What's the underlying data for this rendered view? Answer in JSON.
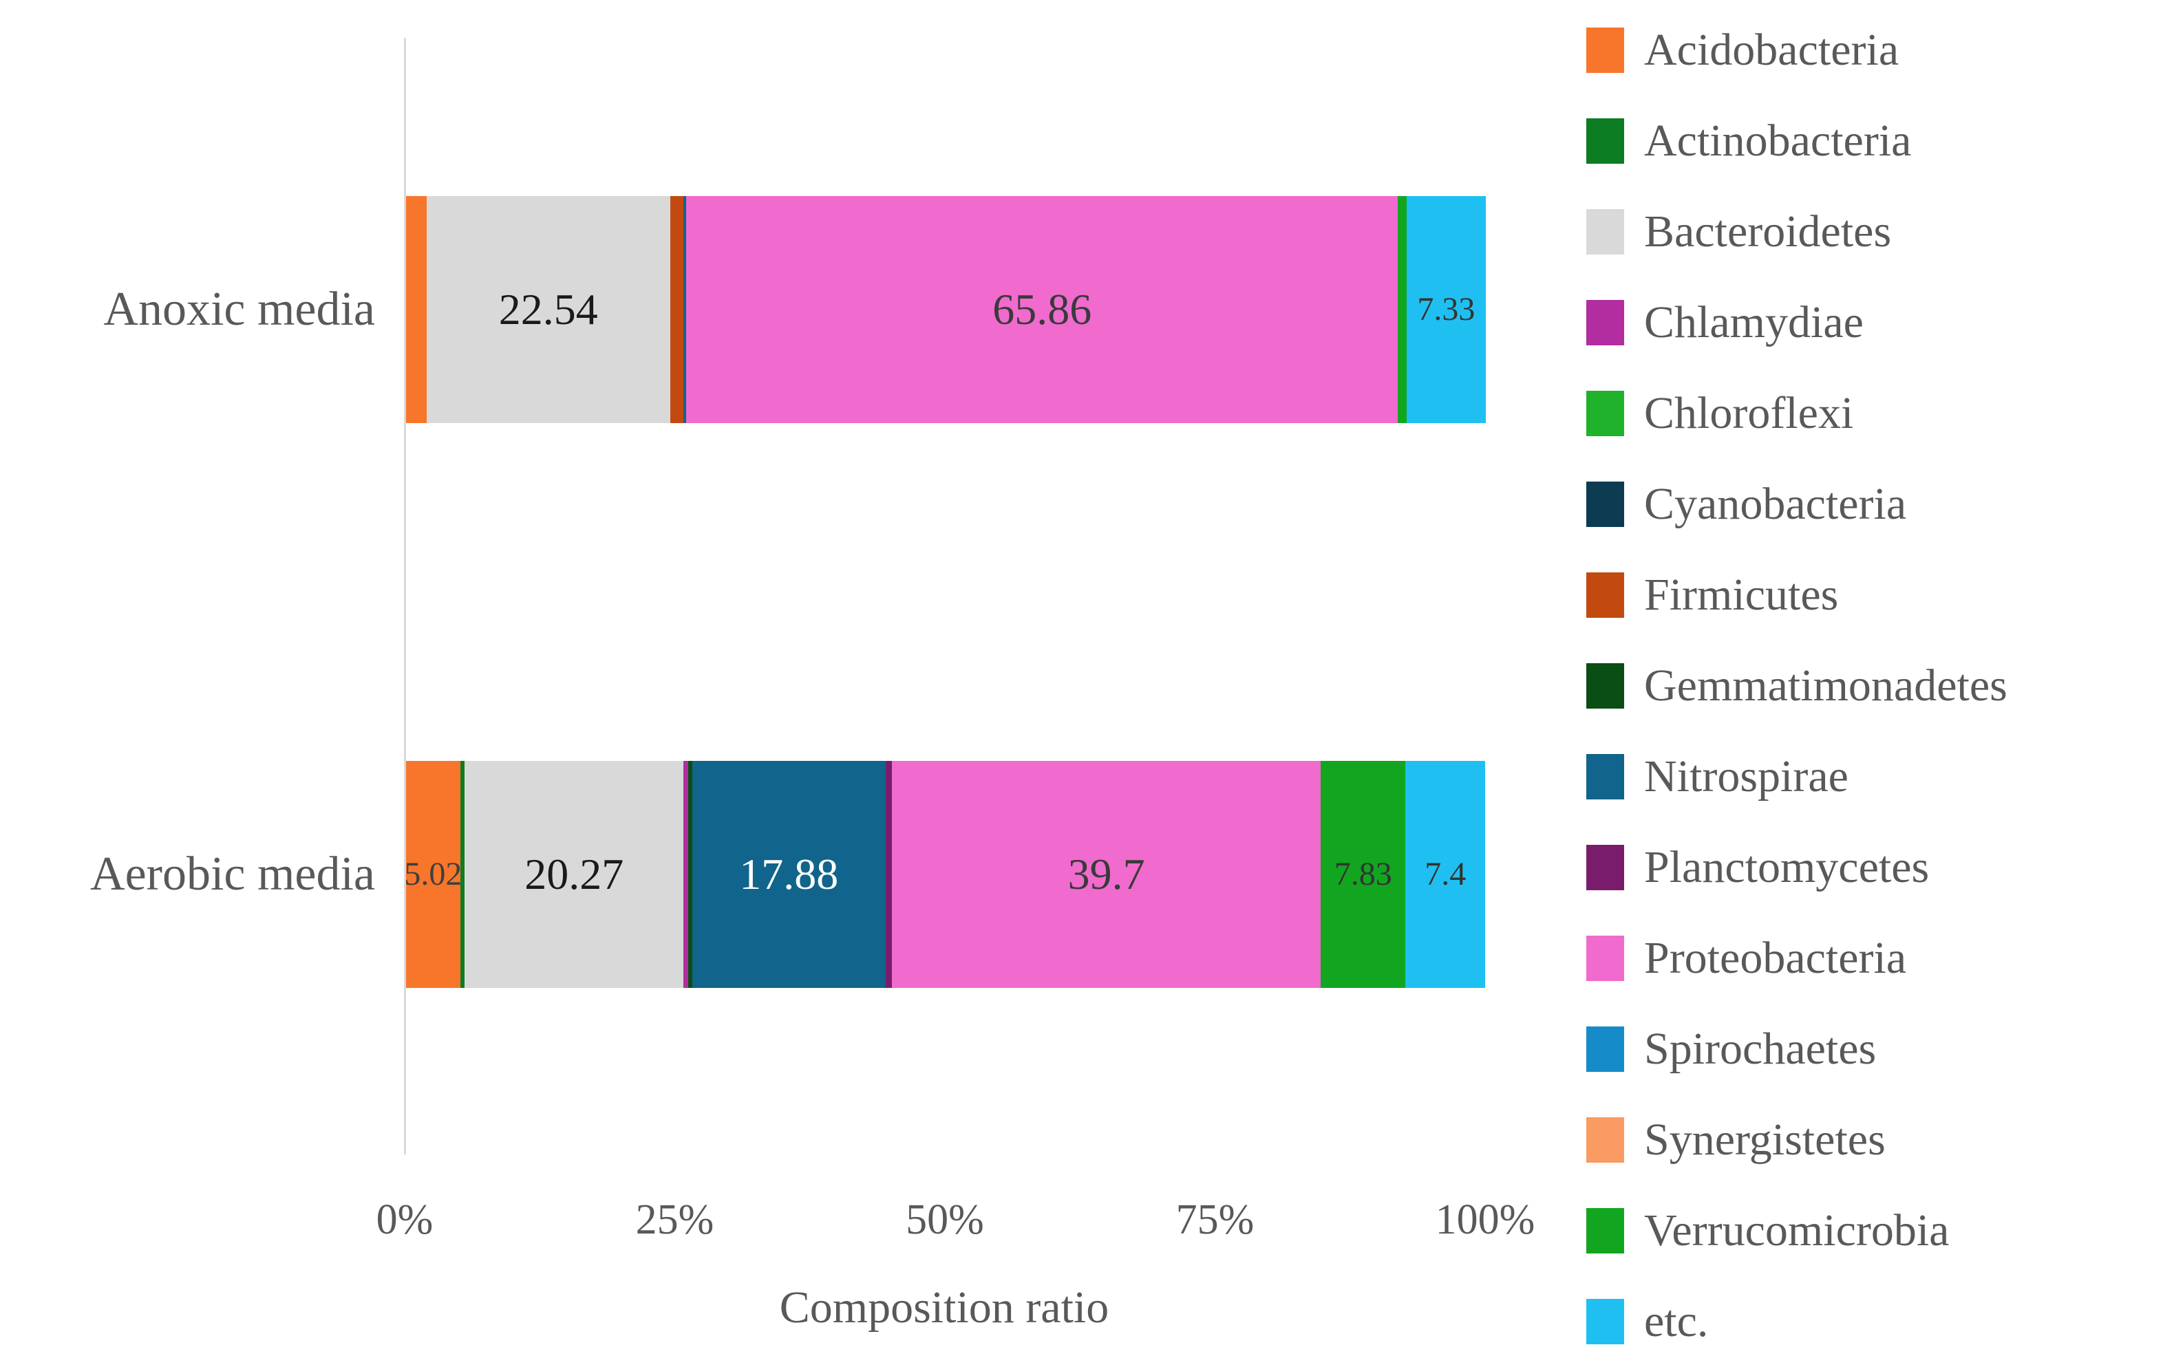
{
  "page": {
    "background": "#FFFFFF",
    "text_color": "#595959"
  },
  "chart_data": {
    "type": "bar",
    "subtype": "horizontal-stacked",
    "title": "",
    "xlabel": "Composition ratio",
    "ylabel": "",
    "xlim": [
      0,
      100
    ],
    "x_ticks": [
      "0%",
      "25%",
      "50%",
      "75%",
      "100%"
    ],
    "gridlines": false,
    "legend_position": "right",
    "categories": [
      "Anoxic media",
      "Aerobic media"
    ],
    "series": [
      {
        "name": "Acidobacteria",
        "color": "#F8762B",
        "values": [
          1.9,
          5.02
        ],
        "labels": [
          "",
          "5.02"
        ],
        "label_colors": [
          "",
          "#3F3F3F"
        ]
      },
      {
        "name": "Actinobacteria",
        "color": "#0C7D22",
        "values": [
          0,
          0.4
        ],
        "labels": [
          "",
          ""
        ],
        "label_colors": [
          "",
          ""
        ]
      },
      {
        "name": "Bacteroidetes",
        "color": "#D9D9D9",
        "values": [
          22.54,
          20.27
        ],
        "labels": [
          "22.54",
          "20.27"
        ],
        "label_colors": [
          "#1A1A1A",
          "#1A1A1A"
        ]
      },
      {
        "name": "Chlamydiae",
        "color": "#B12DA0",
        "values": [
          0,
          0.4
        ],
        "labels": [
          "",
          ""
        ],
        "label_colors": [
          "",
          ""
        ]
      },
      {
        "name": "Chloroflexi",
        "color": "#20B22B",
        "values": [
          0,
          0
        ],
        "labels": [
          "",
          ""
        ],
        "label_colors": [
          "",
          ""
        ]
      },
      {
        "name": "Cyanobacteria",
        "color": "#0C3B52",
        "values": [
          0,
          0
        ],
        "labels": [
          "",
          ""
        ],
        "label_colors": [
          "",
          ""
        ]
      },
      {
        "name": "Firmicutes",
        "color": "#C24A10",
        "values": [
          1.2,
          0
        ],
        "labels": [
          "",
          ""
        ],
        "label_colors": [
          "",
          ""
        ]
      },
      {
        "name": "Gemmatimonadetes",
        "color": "#0A4E16",
        "values": [
          0,
          0.4
        ],
        "labels": [
          "",
          ""
        ],
        "label_colors": [
          "",
          ""
        ]
      },
      {
        "name": "Nitrospirae",
        "color": "#11648C",
        "values": [
          0.3,
          17.88
        ],
        "labels": [
          "",
          "17.88"
        ],
        "label_colors": [
          "",
          "#FFFFFF"
        ]
      },
      {
        "name": "Planctomycetes",
        "color": "#7A1C6C",
        "values": [
          0,
          0.6
        ],
        "labels": [
          "",
          ""
        ],
        "label_colors": [
          "",
          ""
        ]
      },
      {
        "name": "Proteobacteria",
        "color": "#F06BCD",
        "values": [
          65.86,
          39.7
        ],
        "labels": [
          "65.86",
          "39.7"
        ],
        "label_colors": [
          "#3A3A3A",
          "#3A3A3A"
        ]
      },
      {
        "name": "Spirochaetes",
        "color": "#168BCA",
        "values": [
          0,
          0
        ],
        "labels": [
          "",
          ""
        ],
        "label_colors": [
          "",
          ""
        ]
      },
      {
        "name": "Synergistetes",
        "color": "#FB9B64",
        "values": [
          0,
          0
        ],
        "labels": [
          "",
          ""
        ],
        "label_colors": [
          "",
          ""
        ]
      },
      {
        "name": "Verrucomicrobia",
        "color": "#12A620",
        "values": [
          0.8,
          7.83
        ],
        "labels": [
          "",
          "7.83"
        ],
        "label_colors": [
          "",
          "#333333"
        ]
      },
      {
        "name": "etc.",
        "color": "#1FC0F1",
        "values": [
          7.33,
          7.4
        ],
        "labels": [
          "7.33",
          "7.4"
        ],
        "label_colors": [
          "#333333",
          "#333333"
        ]
      }
    ]
  }
}
